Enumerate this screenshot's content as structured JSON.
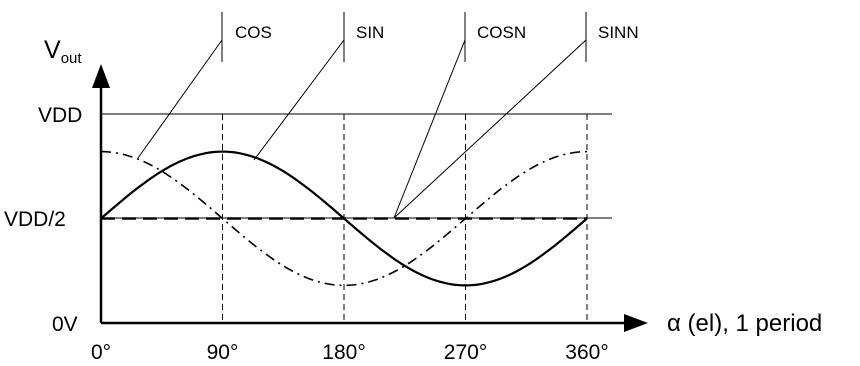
{
  "chart_data": {
    "type": "line",
    "xlabel": "α (el), 1 period",
    "x_ticks": [
      "0°",
      "90°",
      "180°",
      "270°",
      "360°"
    ],
    "x_tick_values": [
      0,
      90,
      180,
      270,
      360
    ],
    "y_ticks": [
      "0V",
      "VDD/2",
      "VDD"
    ],
    "y_tick_values": [
      0,
      0.5,
      1
    ],
    "xlim": [
      0,
      360
    ],
    "ylim": [
      0,
      1
    ],
    "series": [
      {
        "name": "COS",
        "style": "dash-dot",
        "x": [
          0,
          45,
          90,
          135,
          180,
          225,
          270,
          315,
          360
        ],
        "y": [
          0.82,
          0.726,
          0.5,
          0.274,
          0.18,
          0.274,
          0.5,
          0.726,
          0.82
        ]
      },
      {
        "name": "SIN",
        "style": "solid",
        "x": [
          0,
          45,
          90,
          135,
          180,
          225,
          270,
          315,
          360
        ],
        "y": [
          0.5,
          0.726,
          0.82,
          0.726,
          0.5,
          0.274,
          0.18,
          0.274,
          0.5
        ]
      },
      {
        "name": "COSN",
        "style": "long-dash",
        "x": [
          0,
          360
        ],
        "y": [
          0.5,
          0.5
        ]
      },
      {
        "name": "SINN",
        "style": "long-dash",
        "x": [
          0,
          360
        ],
        "y": [
          0.5,
          0.5
        ]
      }
    ],
    "grid": {
      "vertical": true,
      "horizontal_at": [
        0.5,
        1
      ]
    },
    "legend": "callout labels at top"
  },
  "labels": {
    "y_axis_main": "V",
    "y_axis_sub": "out"
  }
}
